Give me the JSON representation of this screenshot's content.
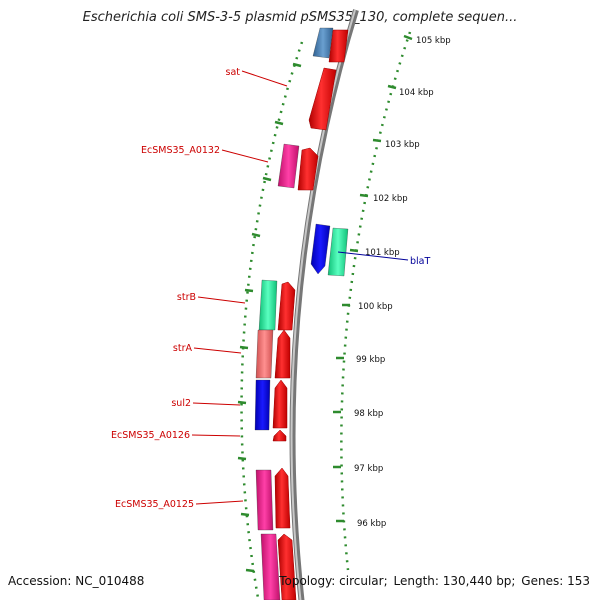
{
  "title": "Escherichia coli SMS-3-5 plasmid pSMS35_130, complete sequen...",
  "footer": {
    "accession_label": "Accession:",
    "accession": "NC_010488",
    "topology_label": "Topology:",
    "topology": "circular",
    "length_label": "Length:",
    "length": "130,440 bp",
    "genes_label": "Genes:",
    "genes": "153"
  },
  "map": {
    "tick_labels": [
      "105 kbp",
      "104 kbp",
      "103 kbp",
      "102 kbp",
      "101 kbp",
      "100 kbp",
      "99 kbp",
      "98 kbp",
      "97 kbp",
      "96 kbp"
    ],
    "gene_labels": [
      {
        "name": "sat",
        "color": "#cc0000"
      },
      {
        "name": "EcSMS35_A0132",
        "color": "#cc0000"
      },
      {
        "name": "strB",
        "color": "#cc0000"
      },
      {
        "name": "strA",
        "color": "#cc0000"
      },
      {
        "name": "sul2",
        "color": "#cc0000"
      },
      {
        "name": "EcSMS35_A0126",
        "color": "#cc0000"
      },
      {
        "name": "EcSMS35_A0125",
        "color": "#cc0000"
      },
      {
        "name": "blaT",
        "color": "#000099"
      }
    ],
    "colors": {
      "cds": "#ff1a1a",
      "feature_pink": "#f0208f",
      "feature_green": "#33f0a0",
      "feature_salmon": "#f07070",
      "feature_blue": "#0000e0",
      "feature_steelblue": "#4a7fb5",
      "backbone": "#888888",
      "dots": "#2e8b2e"
    }
  }
}
